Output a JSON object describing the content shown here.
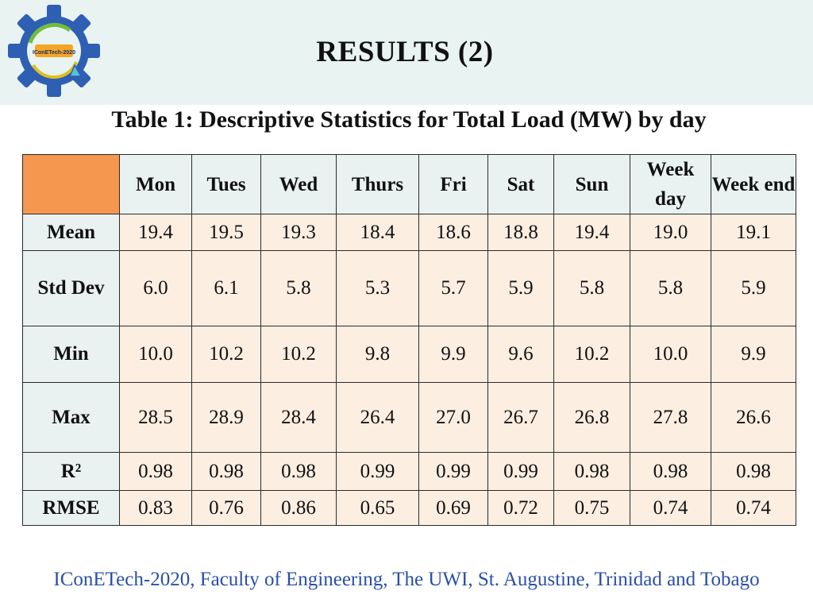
{
  "logo": {
    "text": "IConETech-2020",
    "gear_color": "#2f5fb3"
  },
  "title": "RESULTS (2)",
  "caption": "Table 1: Descriptive Statistics for Total Load (MW) by day",
  "table": {
    "columns": [
      "Mon",
      "Tues",
      "Wed",
      "Thurs",
      "Fri",
      "Sat",
      "Sun",
      "Week day",
      "Week end"
    ],
    "rows": [
      {
        "label": "Mean",
        "values": [
          "19.4",
          "19.5",
          "19.3",
          "18.4",
          "18.6",
          "18.8",
          "19.4",
          "19.0",
          "19.1"
        ],
        "bold": [
          1,
          3
        ]
      },
      {
        "label": "Std Dev",
        "values": [
          "6.0",
          "6.1",
          "5.8",
          "5.3",
          "5.7",
          "5.9",
          "5.8",
          "5.8",
          "5.9"
        ],
        "bold": [
          1,
          3
        ]
      },
      {
        "label": "Min",
        "values": [
          "10.0",
          "10.2",
          "10.2",
          "9.8",
          "9.9",
          "9.6",
          "10.2",
          "10.0",
          "9.9"
        ],
        "bold": [
          5
        ]
      },
      {
        "label": "Max",
        "values": [
          "28.5",
          "28.9",
          "28.4",
          "26.4",
          "27.0",
          "26.7",
          "26.8",
          "27.8",
          "26.6"
        ],
        "bold": [
          1
        ]
      },
      {
        "label": "R²",
        "values": [
          "0.98",
          "0.98",
          "0.98",
          "0.99",
          "0.99",
          "0.99",
          "0.98",
          "0.98",
          "0.98"
        ],
        "bold": []
      },
      {
        "label": "RMSE",
        "values": [
          "0.83",
          "0.76",
          "0.86",
          "0.65",
          "0.69",
          "0.72",
          "0.75",
          "0.74",
          "0.74"
        ],
        "bold": []
      }
    ]
  },
  "footer": "IConETech-2020, Faculty of Engineering, The UWI, St. Augustine, Trinidad and Tobago"
}
